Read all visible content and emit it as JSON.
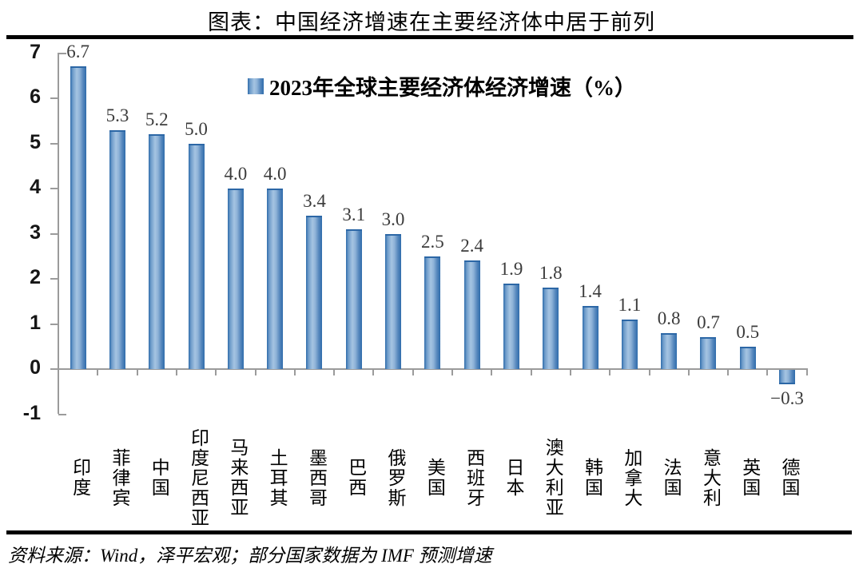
{
  "title": "图表：中国经济增速在主要经济体中居于前列",
  "footer": "资料来源：Wind，泽平宏观；部分国家数据为 IMF 预测增速",
  "chart_data": {
    "type": "bar",
    "legend": "2023年全球主要经济体经济增速（%）",
    "legend_position": "top-center",
    "categories": [
      "印度",
      "菲律宾",
      "中国",
      "印度尼西亚",
      "马来西亚",
      "土耳其",
      "墨西哥",
      "巴西",
      "俄罗斯",
      "美国",
      "西班牙",
      "日本",
      "澳大利亚",
      "韩国",
      "加拿大",
      "法国",
      "意大利",
      "英国",
      "德国"
    ],
    "values": [
      6.7,
      5.3,
      5.2,
      5.0,
      4.0,
      4.0,
      3.4,
      3.1,
      3.0,
      2.5,
      2.4,
      1.9,
      1.8,
      1.4,
      1.1,
      0.8,
      0.7,
      0.5,
      -0.3
    ],
    "value_labels": [
      "6.7",
      "5.3",
      "5.2",
      "5.0",
      "4.0",
      "4.0",
      "3.4",
      "3.1",
      "3.0",
      "2.5",
      "2.4",
      "1.9",
      "1.8",
      "1.4",
      "1.1",
      "0.8",
      "0.7",
      "0.5",
      "−0.3"
    ],
    "ylim": [
      -1,
      7
    ],
    "yticks": [
      7,
      6,
      5,
      4,
      3,
      2,
      1,
      0,
      -1
    ],
    "grid": false,
    "xlabel": "",
    "ylabel": "",
    "bar_edge_color": "#2f6cab",
    "bar_mid_color": "#a5c4e2",
    "axis_color": "#9b9b9b"
  }
}
